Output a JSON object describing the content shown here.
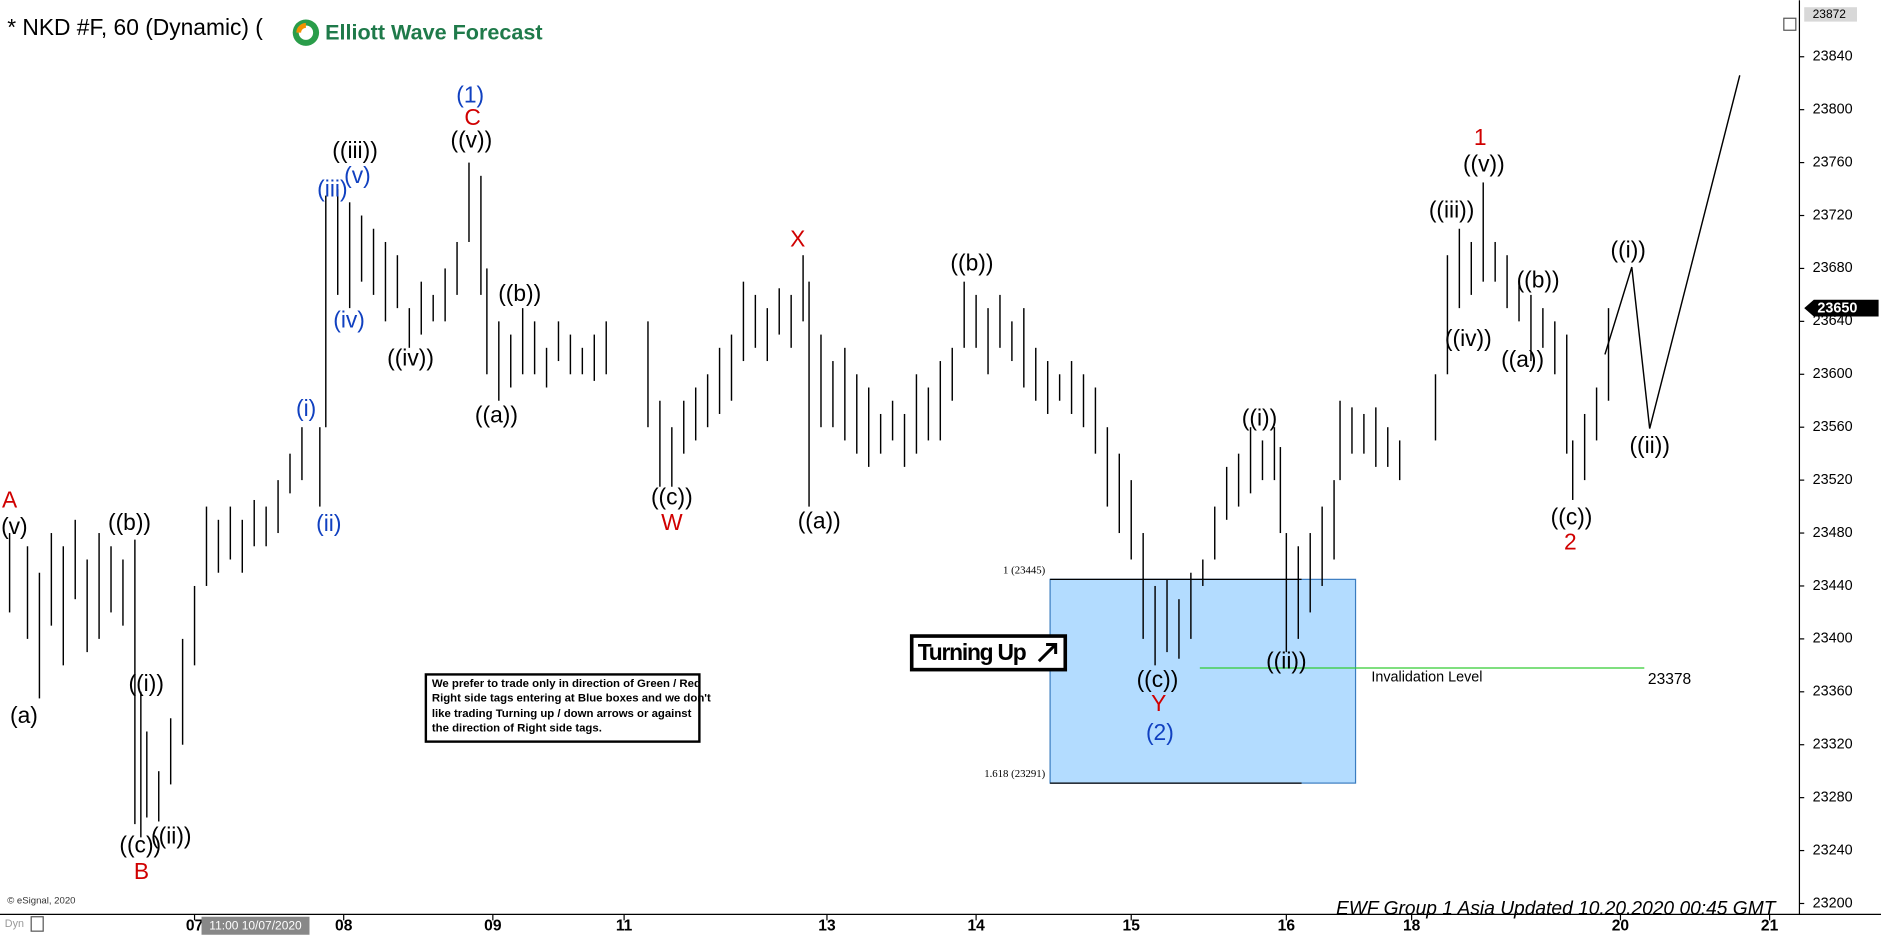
{
  "header": {
    "symbol": "* NKD #F, 60 (Dynamic) (",
    "logo": "Elliott Wave Forecast"
  },
  "chart_data": {
    "type": "ohlc",
    "xlim": [
      0,
      300
    ],
    "ylim": [
      23180,
      23875
    ],
    "xticks": [
      {
        "value": 31,
        "label": "07"
      },
      {
        "value": 56,
        "label": "08"
      },
      {
        "value": 81,
        "label": "09"
      },
      {
        "value": 103,
        "label": "11"
      },
      {
        "value": 137,
        "label": "13"
      },
      {
        "value": 162,
        "label": "14"
      },
      {
        "value": 188,
        "label": "15"
      },
      {
        "value": 214,
        "label": "16"
      },
      {
        "value": 235,
        "label": "18"
      },
      {
        "value": 270,
        "label": "20"
      },
      {
        "value": 295,
        "label": "21"
      }
    ],
    "yticks": [
      23200,
      23240,
      23280,
      23320,
      23360,
      23400,
      23440,
      23480,
      23520,
      23560,
      23600,
      23640,
      23680,
      23720,
      23760,
      23800,
      23840
    ],
    "top_price": 23872,
    "current_price": 23650,
    "cursor_label": "11:00 10/07/2020",
    "series": [
      {
        "color": "#000000",
        "x": [
          0,
          3,
          5,
          7,
          9,
          11,
          13,
          15,
          17,
          19,
          21,
          22,
          23,
          25,
          27,
          29,
          31,
          33,
          35,
          37,
          39,
          41,
          43,
          45,
          47,
          49,
          52,
          53,
          55,
          57,
          59,
          61,
          63,
          65,
          67,
          69,
          71,
          73,
          75,
          77,
          79,
          80,
          82,
          84,
          86,
          88,
          90,
          92,
          94,
          96,
          98,
          100,
          107,
          109,
          111,
          113,
          115,
          117,
          119,
          121,
          123,
          125,
          127,
          129,
          131,
          133,
          134,
          136,
          138,
          140,
          142,
          144,
          146,
          148,
          150,
          152,
          154,
          156,
          158,
          160,
          162,
          164,
          166,
          168,
          170,
          172,
          174,
          176,
          178,
          180,
          182,
          184,
          186,
          188,
          190,
          192,
          194,
          196,
          198,
          200,
          202,
          204,
          206,
          208,
          210,
          212,
          213,
          214,
          216,
          218,
          220,
          222,
          223,
          225,
          227,
          229,
          231,
          233,
          239,
          241,
          243,
          245,
          247,
          249,
          251,
          253,
          255,
          257,
          259,
          261,
          262,
          264,
          266,
          268
        ],
        "high": [
          23480,
          23470,
          23450,
          23480,
          23470,
          23490,
          23460,
          23480,
          23470,
          23460,
          23475,
          23360,
          23330,
          23300,
          23340,
          23400,
          23440,
          23500,
          23490,
          23500,
          23490,
          23505,
          23500,
          23520,
          23540,
          23560,
          23560,
          23735,
          23740,
          23730,
          23720,
          23710,
          23700,
          23690,
          23650,
          23670,
          23660,
          23680,
          23700,
          23760,
          23750,
          23680,
          23640,
          23630,
          23650,
          23640,
          23620,
          23640,
          23630,
          23620,
          23630,
          23640,
          23640,
          23580,
          23560,
          23580,
          23590,
          23600,
          23620,
          23630,
          23670,
          23660,
          23650,
          23665,
          23660,
          23690,
          23670,
          23630,
          23610,
          23620,
          23600,
          23590,
          23570,
          23580,
          23570,
          23600,
          23590,
          23610,
          23620,
          23670,
          23660,
          23650,
          23660,
          23640,
          23650,
          23620,
          23610,
          23600,
          23610,
          23600,
          23590,
          23560,
          23540,
          23520,
          23480,
          23440,
          23445,
          23430,
          23450,
          23460,
          23500,
          23530,
          23540,
          23560,
          23550,
          23560,
          23545,
          23480,
          23470,
          23480,
          23500,
          23520,
          23580,
          23575,
          23570,
          23575,
          23560,
          23550,
          23600,
          23690,
          23710,
          23700,
          23745,
          23700,
          23690,
          23670,
          23660,
          23650,
          23640,
          23630,
          23550,
          23570,
          23590,
          23650
        ],
        "low": [
          23420,
          23400,
          23355,
          23410,
          23380,
          23430,
          23390,
          23400,
          23420,
          23410,
          23260,
          23250,
          23265,
          23262,
          23290,
          23320,
          23380,
          23440,
          23450,
          23460,
          23450,
          23470,
          23470,
          23480,
          23510,
          23520,
          23500,
          23560,
          23660,
          23650,
          23670,
          23660,
          23640,
          23650,
          23620,
          23630,
          23640,
          23640,
          23660,
          23700,
          23660,
          23600,
          23580,
          23590,
          23600,
          23600,
          23590,
          23610,
          23600,
          23600,
          23595,
          23600,
          23560,
          23515,
          23515,
          23540,
          23550,
          23560,
          23570,
          23580,
          23610,
          23620,
          23610,
          23630,
          23620,
          23640,
          23500,
          23560,
          23560,
          23550,
          23540,
          23530,
          23540,
          23550,
          23530,
          23540,
          23550,
          23550,
          23580,
          23620,
          23620,
          23600,
          23620,
          23610,
          23590,
          23580,
          23570,
          23580,
          23570,
          23560,
          23540,
          23500,
          23480,
          23460,
          23400,
          23380,
          23390,
          23385,
          23400,
          23440,
          23460,
          23490,
          23500,
          23510,
          23520,
          23520,
          23480,
          23390,
          23400,
          23420,
          23440,
          23460,
          23520,
          23540,
          23540,
          23530,
          23530,
          23520,
          23550,
          23600,
          23650,
          23660,
          23670,
          23670,
          23650,
          23640,
          23610,
          23620,
          23600,
          23540,
          23505,
          23520,
          23550,
          23580
        ]
      }
    ],
    "annotations": [
      {
        "text": "A",
        "color": "#d00000",
        "x": 0,
        "y": 23504
      },
      {
        "text": "(v)",
        "color": "#000000",
        "x": 0.8,
        "y": 23484
      },
      {
        "text": "(a)",
        "color": "#000000",
        "x": 2.4,
        "y": 23341
      },
      {
        "text": "((b))",
        "color": "#000000",
        "x": 20.1,
        "y": 23487
      },
      {
        "text": "((i))",
        "color": "#000000",
        "x": 22.9,
        "y": 23365
      },
      {
        "text": "((c))",
        "color": "#000000",
        "x": 21.9,
        "y": 23243
      },
      {
        "text": "((ii))",
        "color": "#000000",
        "x": 27.1,
        "y": 23250
      },
      {
        "text": "B",
        "color": "#d00000",
        "x": 22.1,
        "y": 23223
      },
      {
        "text": "(i)",
        "color": "#1040c0",
        "x": 49.7,
        "y": 23573
      },
      {
        "text": "(ii)",
        "color": "#1040c0",
        "x": 53.5,
        "y": 23486
      },
      {
        "text": "(iii)",
        "color": "#1040c0",
        "x": 54.1,
        "y": 23739
      },
      {
        "text": "(iv)",
        "color": "#1040c0",
        "x": 56.9,
        "y": 23640
      },
      {
        "text": "(v)",
        "color": "#1040c0",
        "x": 58.3,
        "y": 23749
      },
      {
        "text": "((iii))",
        "color": "#000000",
        "x": 57.9,
        "y": 23768
      },
      {
        "text": "((iv))",
        "color": "#000000",
        "x": 67.2,
        "y": 23611
      },
      {
        "text": "(1)",
        "color": "#1040c0",
        "x": 77.2,
        "y": 23810
      },
      {
        "text": "C",
        "color": "#d00000",
        "x": 77.6,
        "y": 23793
      },
      {
        "text": "((v))",
        "color": "#000000",
        "x": 77.4,
        "y": 23776
      },
      {
        "text": "((b))",
        "color": "#000000",
        "x": 85.5,
        "y": 23660
      },
      {
        "text": "((a))",
        "color": "#000000",
        "x": 81.6,
        "y": 23568
      },
      {
        "text": "((c))",
        "color": "#000000",
        "x": 111,
        "y": 23506
      },
      {
        "text": "W",
        "color": "#d00000",
        "x": 111,
        "y": 23487
      },
      {
        "text": "X",
        "color": "#d00000",
        "x": 132.1,
        "y": 23701
      },
      {
        "text": "((a))",
        "color": "#000000",
        "x": 135.7,
        "y": 23488
      },
      {
        "text": "((b))",
        "color": "#000000",
        "x": 161.3,
        "y": 23683
      },
      {
        "text": "((i))",
        "color": "#000000",
        "x": 209.5,
        "y": 23566
      },
      {
        "text": "((c))",
        "color": "#000000",
        "x": 192.4,
        "y": 23368
      },
      {
        "text": "Y",
        "color": "#d00000",
        "x": 192.6,
        "y": 23350
      },
      {
        "text": "(2)",
        "color": "#1040c0",
        "x": 192.8,
        "y": 23328
      },
      {
        "text": "((ii))",
        "color": "#000000",
        "x": 214,
        "y": 23382
      },
      {
        "text": "1",
        "color": "#d00000",
        "x": 246.5,
        "y": 23778
      },
      {
        "text": "((v))",
        "color": "#000000",
        "x": 247.1,
        "y": 23758
      },
      {
        "text": "((iii))",
        "color": "#000000",
        "x": 241.7,
        "y": 23723
      },
      {
        "text": "((iv))",
        "color": "#000000",
        "x": 244.5,
        "y": 23626
      },
      {
        "text": "((b))",
        "color": "#000000",
        "x": 256.2,
        "y": 23670
      },
      {
        "text": "((a))",
        "color": "#000000",
        "x": 253.6,
        "y": 23610
      },
      {
        "text": "((c))",
        "color": "#000000",
        "x": 261.8,
        "y": 23491
      },
      {
        "text": "2",
        "color": "#d00000",
        "x": 261.6,
        "y": 23472
      },
      {
        "text": "((i))",
        "color": "#000000",
        "x": 271.3,
        "y": 23693
      },
      {
        "text": "((ii))",
        "color": "#000000",
        "x": 274.9,
        "y": 23545
      }
    ],
    "zone": {
      "top": 23445,
      "bottom": 23291,
      "x": [
        174.4,
        225.6
      ],
      "top_label": "1 (23445)",
      "bottom_label": "1.618 (23291)",
      "color": "#b3dcff"
    },
    "invalidation": {
      "value": 23378,
      "value_label": "23378",
      "label": "Invalidation Level",
      "x": [
        199.5,
        274
      ],
      "color": "#33cc33"
    },
    "projection": {
      "x": [
        267.4,
        271.9,
        274.9,
        290
      ],
      "y": [
        23615,
        23681,
        23559,
        23826
      ]
    }
  },
  "note": [
    "We prefer to trade only in direction of Green / Red",
    "Right side tags entering at Blue boxes and we don't",
    "like trading Turning up / down arrows or against",
    "the direction of Right side tags."
  ],
  "badge": "Turning Up",
  "footer": "EWF Group 1 Asia Updated 10.20.2020 00:45 GMT",
  "copyright": "© eSignal, 2020",
  "corner": "Dyn"
}
